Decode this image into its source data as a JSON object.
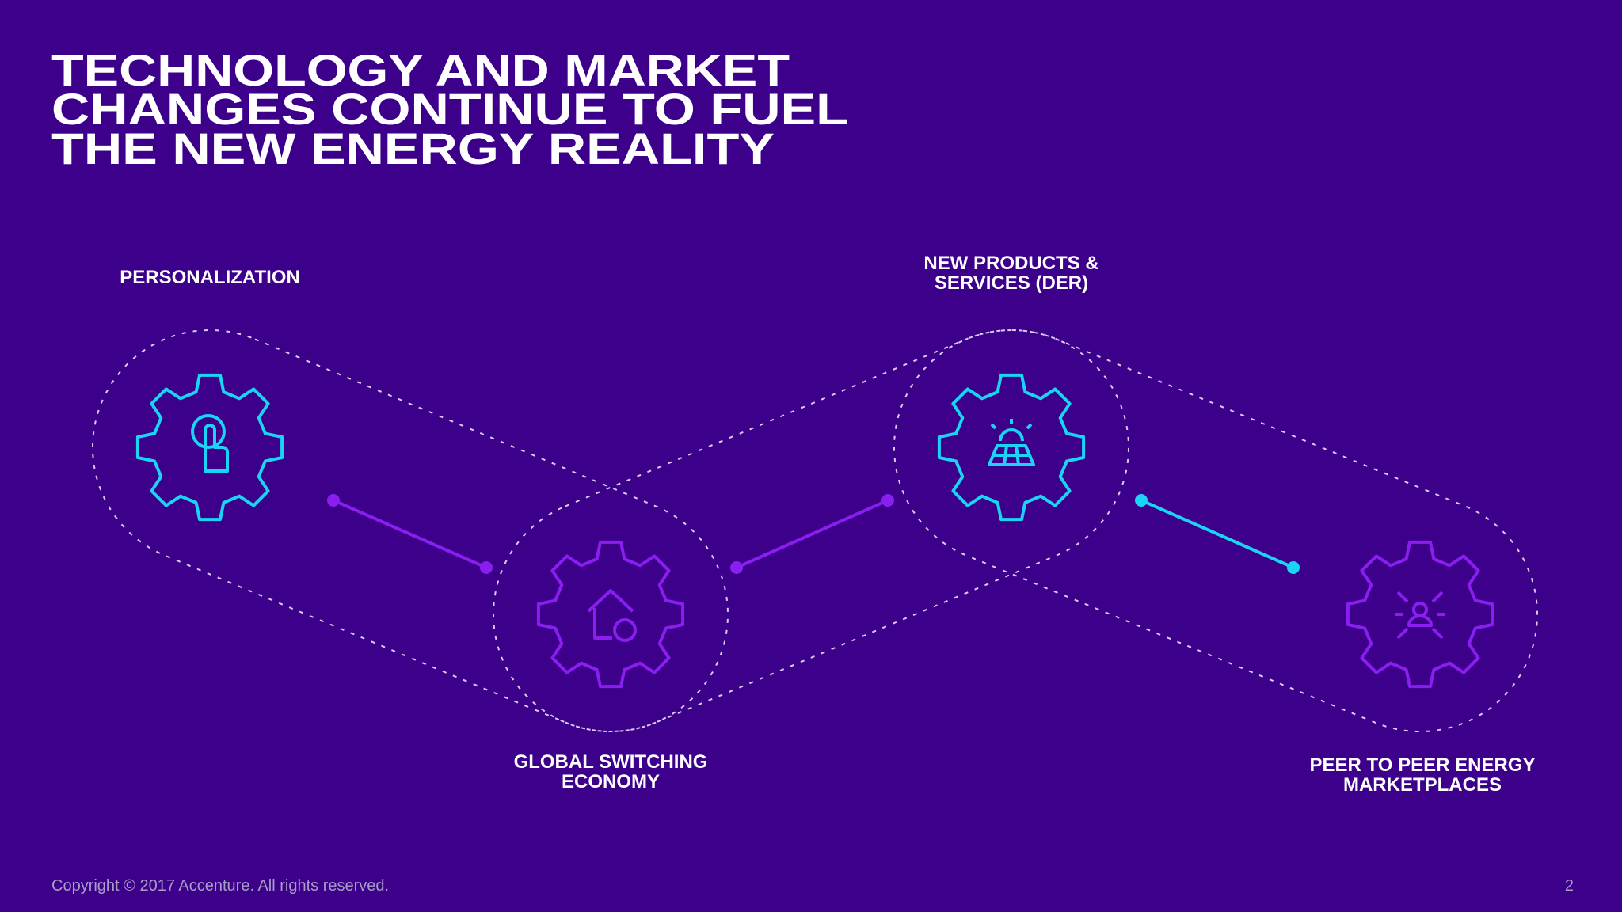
{
  "title": {
    "lines": [
      "TECHNOLOGY AND MARKET",
      "CHANGES CONTINUE TO FUEL",
      "THE NEW ENERGY REALITY"
    ]
  },
  "nodes": [
    {
      "label": [
        "PERSONALIZATION"
      ]
    },
    {
      "label": [
        "GLOBAL SWITCHING",
        "ECONOMY"
      ]
    },
    {
      "label": [
        "NEW PRODUCTS &",
        "SERVICES (DER)"
      ]
    },
    {
      "label": [
        "PEER TO PEER ENERGY",
        "MARKETPLACES"
      ]
    }
  ],
  "footer": {
    "copyright": "Copyright © 2017 Accenture. All rights reserved.",
    "page": "2"
  }
}
